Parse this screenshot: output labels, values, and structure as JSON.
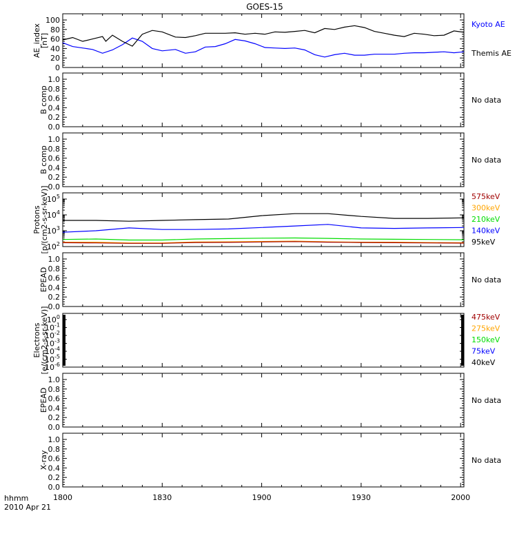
{
  "title": "GOES-15",
  "x_axis": {
    "tick_labels": [
      "1800",
      "1830",
      "1900",
      "1930",
      "2000"
    ],
    "corner_label": "hhmm",
    "date_label": "2010 Apr 21"
  },
  "no_data_text": "No data",
  "colors": {
    "black": "#000000",
    "blue": "#0000ff",
    "green": "#00dd00",
    "orange": "#ffa500",
    "red": "#a00000"
  },
  "chart_data": [
    {
      "type": "line",
      "panel": "ae-index",
      "ylabel": [
        "AE_index",
        "[nT]"
      ],
      "ylim": [
        0,
        100
      ],
      "yticks": [
        "0",
        "20",
        "40",
        "60",
        "80",
        "100"
      ],
      "x_unit": "minutes after 1800 UT",
      "series": [
        {
          "name": "Kyoto AE",
          "color": "#0000ff",
          "x": [
            0,
            3,
            6,
            9,
            12,
            15,
            18,
            21,
            24,
            27,
            30,
            34,
            37,
            40,
            43,
            46,
            49,
            52,
            55,
            58,
            61,
            64,
            67,
            70,
            73,
            76,
            79,
            82,
            85,
            88,
            91,
            94,
            97,
            100,
            103,
            106,
            109,
            112,
            115,
            118,
            121
          ],
          "y": [
            52,
            44,
            41,
            38,
            30,
            37,
            48,
            62,
            55,
            40,
            35,
            38,
            30,
            33,
            43,
            44,
            50,
            59,
            56,
            50,
            42,
            41,
            40,
            41,
            37,
            27,
            22,
            27,
            30,
            26,
            26,
            28,
            28,
            28,
            30,
            31,
            31,
            32,
            33,
            31,
            33
          ]
        },
        {
          "name": "Themis AE",
          "color": "#000000",
          "x": [
            0,
            3,
            6,
            9,
            12,
            13,
            15,
            18,
            21,
            24,
            27,
            30,
            34,
            37,
            40,
            43,
            46,
            49,
            52,
            55,
            58,
            61,
            64,
            67,
            70,
            73,
            76,
            79,
            82,
            85,
            88,
            91,
            94,
            97,
            100,
            103,
            106,
            109,
            112,
            115,
            118,
            121
          ],
          "y": [
            58,
            63,
            55,
            60,
            65,
            55,
            68,
            55,
            45,
            70,
            78,
            75,
            64,
            63,
            67,
            72,
            72,
            72,
            73,
            70,
            72,
            70,
            75,
            74,
            76,
            78,
            73,
            82,
            80,
            85,
            88,
            84,
            76,
            72,
            68,
            65,
            72,
            70,
            67,
            68,
            77,
            74
          ]
        }
      ]
    },
    {
      "type": "line",
      "panel": "b-comp-1",
      "ylabel": [
        "B comp"
      ],
      "ylim": [
        0,
        1
      ],
      "yticks": [
        "0.0",
        "0.2",
        "0.4",
        "0.6",
        "0.8",
        "1.0"
      ],
      "series": [],
      "status": "No data"
    },
    {
      "type": "line",
      "panel": "b-comp-2",
      "ylabel": [
        "B comp"
      ],
      "ylim": [
        0,
        1
      ],
      "yticks": [
        "0.0",
        "0.2",
        "0.4",
        "0.6",
        "0.8",
        "1.0"
      ],
      "series": [],
      "status": "No data"
    },
    {
      "type": "line",
      "panel": "protons",
      "ylabel": [
        "Protons",
        "[p/(cm2-s-sr-keV)]"
      ],
      "log_y": true,
      "ylim": [
        100,
        100000
      ],
      "yticks_exponents": [
        2,
        3,
        4,
        5
      ],
      "legend": [
        "575keV",
        "300keV",
        "210keV",
        "140keV",
        "95keV"
      ],
      "series": [
        {
          "name": "95keV",
          "color": "#000000",
          "x": [
            0,
            10,
            20,
            30,
            40,
            50,
            60,
            70,
            80,
            90,
            100,
            110,
            121
          ],
          "y": [
            4500,
            4500,
            4000,
            4500,
            5000,
            5500,
            9000,
            12000,
            12000,
            8000,
            6000,
            6000,
            6500
          ]
        },
        {
          "name": "140keV",
          "color": "#0000ff",
          "x": [
            0,
            10,
            20,
            30,
            40,
            50,
            60,
            70,
            80,
            90,
            100,
            110,
            121
          ],
          "y": [
            800,
            1000,
            1500,
            1200,
            1200,
            1300,
            1600,
            2000,
            2500,
            1500,
            1400,
            1500,
            1600
          ]
        },
        {
          "name": "210keV",
          "color": "#00dd00",
          "x": [
            0,
            10,
            20,
            30,
            40,
            50,
            60,
            70,
            80,
            90,
            100,
            110,
            121
          ],
          "y": [
            280,
            300,
            260,
            260,
            300,
            320,
            340,
            350,
            330,
            300,
            290,
            280,
            270
          ]
        },
        {
          "name": "300keV",
          "color": "#ffa500",
          "x": [
            0,
            10,
            20,
            30,
            40,
            50,
            60,
            70,
            80,
            90,
            100,
            110,
            121
          ],
          "y": [
            190,
            190,
            170,
            170,
            195,
            200,
            210,
            220,
            200,
            190,
            190,
            180,
            175
          ]
        },
        {
          "name": "575keV",
          "color": "#a00000",
          "x": [
            0,
            10,
            20,
            30,
            40,
            50,
            60,
            70,
            80,
            90,
            100,
            110,
            121
          ],
          "y": [
            175,
            170,
            160,
            160,
            180,
            185,
            195,
            205,
            190,
            180,
            175,
            170,
            165
          ]
        }
      ]
    },
    {
      "type": "line",
      "panel": "epead-1",
      "ylabel": [
        "EPEAD"
      ],
      "ylim": [
        0,
        1
      ],
      "yticks": [
        "0.0",
        "0.2",
        "0.4",
        "0.6",
        "0.8",
        "1.0"
      ],
      "series": [],
      "status": "No data"
    },
    {
      "type": "line",
      "panel": "electrons",
      "ylabel": [
        "Electrons",
        "[e/(cm2-s-sr-keV)]"
      ],
      "log_y": true,
      "ylim": [
        1e-06,
        1
      ],
      "yticks_exponents": [
        0,
        -1,
        -2,
        -3,
        -4,
        -5,
        -6
      ],
      "legend": [
        "475keV",
        "275keV",
        "150keV",
        "75keV",
        "40keV"
      ],
      "series": []
    },
    {
      "type": "line",
      "panel": "epead-2",
      "ylabel": [
        "EPEAD"
      ],
      "ylim": [
        0,
        1
      ],
      "yticks": [
        "0.0",
        "0.2",
        "0.4",
        "0.6",
        "0.8",
        "1.0"
      ],
      "series": [],
      "status": "No data"
    },
    {
      "type": "line",
      "panel": "x-ray",
      "ylabel": [
        "X-ray"
      ],
      "ylim": [
        0,
        1
      ],
      "yticks": [
        "0.0",
        "0.2",
        "0.4",
        "0.6",
        "0.8",
        "1.0"
      ],
      "series": [],
      "status": "No data"
    }
  ]
}
